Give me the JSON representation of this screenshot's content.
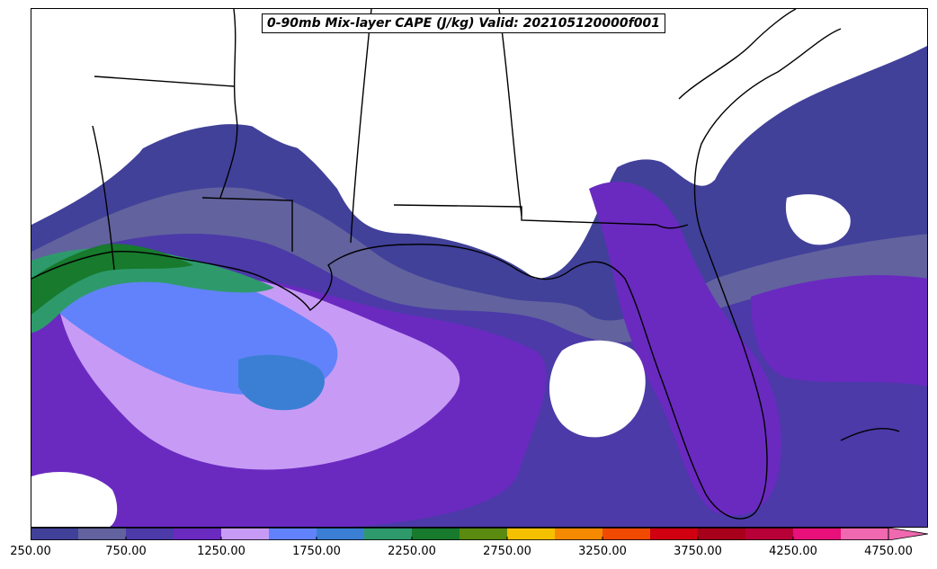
{
  "title": "0-90mb Mix-layer CAPE (J/kg) Valid: 202105120000f001",
  "colorbar": {
    "min": 250,
    "max": 5000,
    "step": 250,
    "tick_labels": [
      "250.00",
      "750.00",
      "1250.00",
      "1750.00",
      "2250.00",
      "2750.00",
      "3250.00",
      "3750.00",
      "4250.00",
      "4750.00"
    ],
    "tick_values": [
      250,
      750,
      1250,
      1750,
      2250,
      2750,
      3250,
      3750,
      4250,
      4750
    ],
    "colors": [
      "#41419a",
      "#62629e",
      "#4b3aa8",
      "#6a2ac0",
      "#c79bf5",
      "#6282fb",
      "#3a7fd4",
      "#2e9a6c",
      "#177a2c",
      "#5a8a10",
      "#f5c000",
      "#f58a00",
      "#ef4a00",
      "#d00010",
      "#a6001a",
      "#b80038",
      "#e8107a",
      "#f068b0"
    ],
    "extend": "max"
  },
  "colors": {
    "land_background": "#ffffff",
    "boundary_lines": "#000000"
  }
}
